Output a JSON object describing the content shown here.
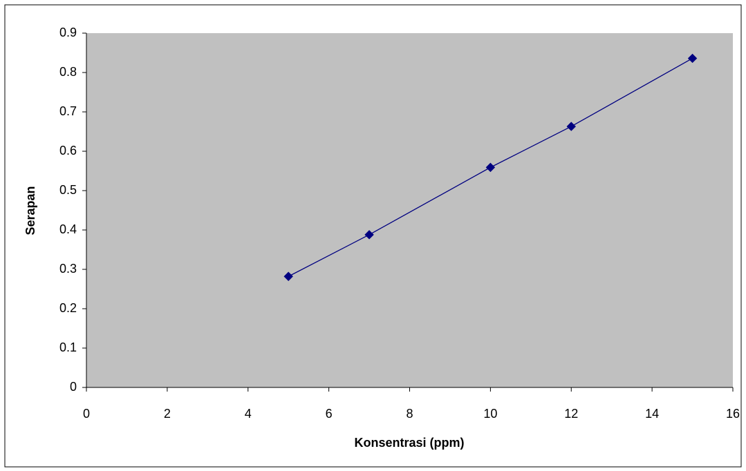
{
  "chart_data": {
    "type": "scatter",
    "x_label": "Konsentrasi (ppm)",
    "y_label": "Serapan",
    "series": [
      {
        "color": "#000080",
        "x": [
          5,
          7,
          10,
          12,
          15
        ],
        "values": [
          0.282,
          0.388,
          0.559,
          0.663,
          0.836
        ]
      }
    ],
    "xlim": [
      0,
      16
    ],
    "xticks": [
      0,
      2,
      4,
      6,
      8,
      10,
      12,
      14,
      16
    ],
    "ylim": [
      0,
      0.9
    ],
    "yticks": [
      0,
      0.1,
      0.2,
      0.3,
      0.4,
      0.5,
      0.6,
      0.7,
      0.8,
      0.9
    ],
    "grid": false,
    "plot_background": "#c0c0c0"
  }
}
